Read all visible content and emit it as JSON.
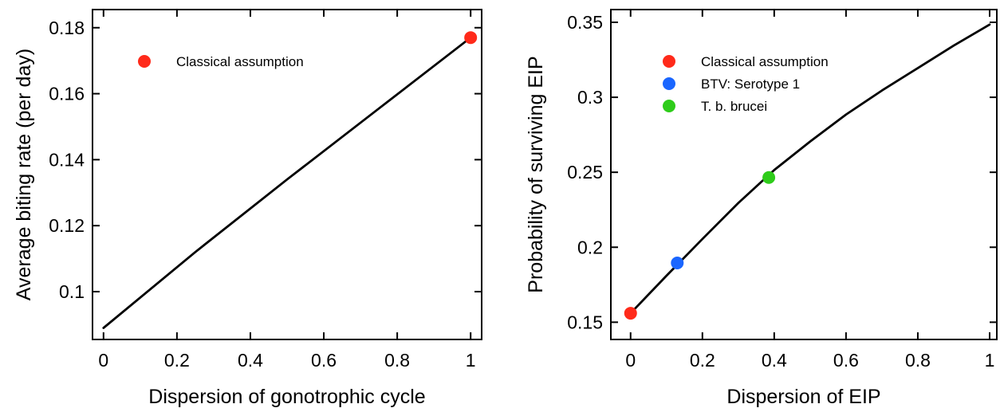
{
  "chart_data": [
    {
      "type": "line",
      "xlabel": "Dispersion of gonotrophic cycle",
      "ylabel": "Average biting rate (per day)",
      "xlim": [
        -0.03,
        1.03
      ],
      "ylim": [
        0.0855,
        0.1855
      ],
      "x_ticks": [
        0,
        0.2,
        0.4,
        0.6,
        0.8,
        1
      ],
      "x_tick_labels": [
        "0",
        "0.2",
        "0.4",
        "0.6",
        "0.8",
        "1"
      ],
      "y_ticks": [
        0.1,
        0.12,
        0.14,
        0.16,
        0.18
      ],
      "y_tick_labels": [
        "0.1",
        "0.12",
        "0.14",
        "0.16",
        "0.18"
      ],
      "grid": false,
      "legend_position": "top-left",
      "series": [
        {
          "color": "#000000",
          "x": [
            0,
            0.25,
            0.5,
            0.75,
            1
          ],
          "y": [
            0.089,
            0.112,
            0.134,
            0.1555,
            0.177
          ]
        }
      ],
      "points": [
        {
          "name": "Classical assumption",
          "x": 1,
          "y": 0.177,
          "color": "#ff2a1a"
        }
      ]
    },
    {
      "type": "line",
      "xlabel": "Dispersion of EIP",
      "ylabel": "Probability of surviving EIP",
      "xlim": [
        -0.055,
        1.02
      ],
      "ylim": [
        0.1385,
        0.3585
      ],
      "x_ticks": [
        0,
        0.2,
        0.4,
        0.6,
        0.8,
        1
      ],
      "x_tick_labels": [
        "0",
        "0.2",
        "0.4",
        "0.6",
        "0.8",
        "1"
      ],
      "y_ticks": [
        0.15,
        0.2,
        0.25,
        0.3,
        0.35
      ],
      "y_tick_labels": [
        "0.15",
        "0.2",
        "0.25",
        "0.3",
        "0.35"
      ],
      "grid": false,
      "legend_position": "top-left",
      "series": [
        {
          "color": "#000000",
          "x": [
            0,
            0.1,
            0.2,
            0.3,
            0.4,
            0.5,
            0.6,
            0.7,
            0.8,
            0.9,
            1.0
          ],
          "y": [
            0.156,
            0.181,
            0.2055,
            0.2295,
            0.2515,
            0.2705,
            0.2885,
            0.3045,
            0.3195,
            0.3345,
            0.3485
          ]
        }
      ],
      "points": [
        {
          "name": "Classical assumption",
          "x": 0,
          "y": 0.156,
          "color": "#ff2a1a"
        },
        {
          "name": "BTV:  Serotype 1",
          "x": 0.13,
          "y": 0.1895,
          "color": "#1a66ff"
        },
        {
          "name": "T. b. brucei",
          "x": 0.385,
          "y": 0.2465,
          "color": "#2ecc1a"
        }
      ]
    }
  ]
}
